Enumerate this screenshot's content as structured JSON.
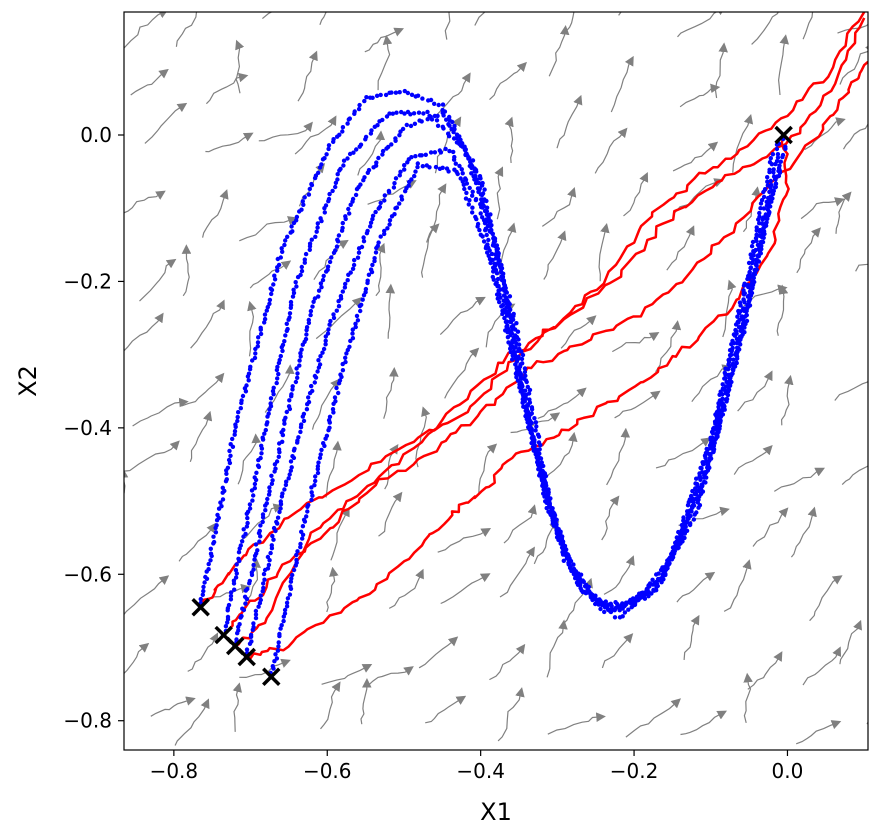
{
  "chart_data": {
    "type": "scatter",
    "title": "",
    "xlabel": "X1",
    "ylabel": "X2",
    "xlim": [
      -0.865,
      0.105
    ],
    "ylim": [
      -0.84,
      0.168
    ],
    "x_ticks": [
      -0.8,
      -0.6,
      -0.4,
      -0.2,
      0.0
    ],
    "x_tick_labels": [
      "−0.8",
      "−0.6",
      "−0.4",
      "−0.2",
      "0.0"
    ],
    "y_ticks": [
      0.0,
      -0.2,
      -0.4,
      -0.6,
      -0.8
    ],
    "y_tick_labels": [
      "0.0",
      "−0.2",
      "−0.4",
      "−0.6",
      "−0.8"
    ],
    "grid": false,
    "legend": "none",
    "colors": {
      "streamlines": "#808080",
      "trajectories": "#ff0000",
      "scatter_points": "#0000ff",
      "markers": "#000000"
    },
    "start_markers": {
      "marker": "x",
      "points": [
        {
          "x": -0.765,
          "y": -0.645
        },
        {
          "x": -0.735,
          "y": -0.683
        },
        {
          "x": -0.72,
          "y": -0.698
        },
        {
          "x": -0.705,
          "y": -0.713
        },
        {
          "x": -0.673,
          "y": -0.74
        },
        {
          "x": -0.005,
          "y": 0.0
        }
      ]
    },
    "red_trajectories": [
      {
        "points": [
          [
            -0.765,
            -0.645
          ],
          [
            -0.74,
            -0.615
          ],
          [
            -0.7,
            -0.565
          ],
          [
            -0.64,
            -0.515
          ],
          [
            -0.58,
            -0.48
          ],
          [
            -0.5,
            -0.42
          ],
          [
            -0.42,
            -0.38
          ],
          [
            -0.36,
            -0.31
          ],
          [
            -0.3,
            -0.26
          ],
          [
            -0.24,
            -0.2
          ],
          [
            -0.18,
            -0.11
          ],
          [
            -0.12,
            -0.06
          ],
          [
            -0.06,
            -0.02
          ],
          [
            0.0,
            0.03
          ],
          [
            0.05,
            0.08
          ],
          [
            0.1,
            0.168
          ]
        ]
      },
      {
        "points": [
          [
            -0.735,
            -0.683
          ],
          [
            -0.7,
            -0.64
          ],
          [
            -0.65,
            -0.58
          ],
          [
            -0.6,
            -0.54
          ],
          [
            -0.54,
            -0.48
          ],
          [
            -0.46,
            -0.43
          ],
          [
            -0.4,
            -0.38
          ],
          [
            -0.34,
            -0.32
          ],
          [
            -0.28,
            -0.29
          ],
          [
            -0.2,
            -0.25
          ],
          [
            -0.14,
            -0.2
          ],
          [
            -0.08,
            -0.14
          ],
          [
            -0.02,
            -0.07
          ],
          [
            0.04,
            0.0
          ],
          [
            0.08,
            0.06
          ],
          [
            0.105,
            0.1
          ]
        ]
      },
      {
        "points": [
          [
            -0.72,
            -0.698
          ],
          [
            -0.68,
            -0.66
          ],
          [
            -0.62,
            -0.54
          ],
          [
            -0.56,
            -0.49
          ],
          [
            -0.48,
            -0.42
          ],
          [
            -0.42,
            -0.36
          ],
          [
            -0.36,
            -0.3
          ],
          [
            -0.3,
            -0.26
          ],
          [
            -0.22,
            -0.19
          ],
          [
            -0.16,
            -0.12
          ],
          [
            -0.1,
            -0.07
          ],
          [
            -0.04,
            -0.04
          ],
          [
            0.02,
            0.01
          ],
          [
            0.06,
            0.07
          ],
          [
            0.1,
            0.16
          ]
        ]
      },
      {
        "points": [
          [
            -0.705,
            -0.713
          ],
          [
            -0.66,
            -0.7
          ],
          [
            -0.6,
            -0.66
          ],
          [
            -0.54,
            -0.62
          ],
          [
            -0.48,
            -0.56
          ],
          [
            -0.44,
            -0.52
          ],
          [
            -0.4,
            -0.49
          ],
          [
            -0.36,
            -0.44
          ],
          [
            -0.3,
            -0.41
          ],
          [
            -0.24,
            -0.37
          ],
          [
            -0.18,
            -0.33
          ],
          [
            -0.12,
            -0.28
          ],
          [
            -0.06,
            -0.22
          ],
          [
            -0.02,
            -0.15
          ],
          [
            0.0,
            -0.07
          ],
          [
            -0.005,
            0.0
          ]
        ]
      }
    ],
    "blue_orbits": [
      {
        "points": [
          [
            -0.765,
            -0.645
          ],
          [
            -0.72,
            -0.4
          ],
          [
            -0.66,
            -0.16
          ],
          [
            -0.6,
            -0.02
          ],
          [
            -0.55,
            0.05
          ],
          [
            -0.5,
            0.06
          ],
          [
            -0.45,
            0.04
          ],
          [
            -0.4,
            -0.06
          ],
          [
            -0.35,
            -0.28
          ],
          [
            -0.31,
            -0.5
          ],
          [
            -0.27,
            -0.62
          ],
          [
            -0.22,
            -0.65
          ],
          [
            -0.16,
            -0.6
          ],
          [
            -0.1,
            -0.42
          ],
          [
            -0.05,
            -0.18
          ],
          [
            -0.02,
            -0.03
          ],
          [
            -0.005,
            0.0
          ]
        ]
      },
      {
        "points": [
          [
            -0.735,
            -0.683
          ],
          [
            -0.69,
            -0.45
          ],
          [
            -0.64,
            -0.2
          ],
          [
            -0.58,
            -0.04
          ],
          [
            -0.52,
            0.03
          ],
          [
            -0.47,
            0.03
          ],
          [
            -0.42,
            -0.02
          ],
          [
            -0.38,
            -0.15
          ],
          [
            -0.34,
            -0.38
          ],
          [
            -0.3,
            -0.55
          ],
          [
            -0.25,
            -0.64
          ],
          [
            -0.2,
            -0.64
          ],
          [
            -0.14,
            -0.56
          ],
          [
            -0.09,
            -0.38
          ],
          [
            -0.04,
            -0.15
          ],
          [
            -0.01,
            -0.02
          ]
        ]
      },
      {
        "points": [
          [
            -0.72,
            -0.698
          ],
          [
            -0.67,
            -0.46
          ],
          [
            -0.62,
            -0.24
          ],
          [
            -0.56,
            -0.07
          ],
          [
            -0.5,
            0.01
          ],
          [
            -0.45,
            0.03
          ],
          [
            -0.41,
            -0.04
          ],
          [
            -0.37,
            -0.2
          ],
          [
            -0.33,
            -0.42
          ],
          [
            -0.29,
            -0.58
          ],
          [
            -0.24,
            -0.65
          ],
          [
            -0.18,
            -0.63
          ],
          [
            -0.12,
            -0.52
          ],
          [
            -0.07,
            -0.32
          ],
          [
            -0.03,
            -0.12
          ],
          [
            0.0,
            -0.01
          ]
        ]
      },
      {
        "points": [
          [
            -0.705,
            -0.713
          ],
          [
            -0.66,
            -0.5
          ],
          [
            -0.6,
            -0.27
          ],
          [
            -0.54,
            -0.11
          ],
          [
            -0.49,
            -0.03
          ],
          [
            -0.44,
            -0.02
          ],
          [
            -0.4,
            -0.1
          ],
          [
            -0.36,
            -0.28
          ],
          [
            -0.32,
            -0.47
          ],
          [
            -0.28,
            -0.6
          ],
          [
            -0.23,
            -0.65
          ],
          [
            -0.17,
            -0.62
          ],
          [
            -0.11,
            -0.48
          ],
          [
            -0.06,
            -0.28
          ],
          [
            -0.02,
            -0.08
          ]
        ]
      },
      {
        "points": [
          [
            -0.673,
            -0.74
          ],
          [
            -0.63,
            -0.53
          ],
          [
            -0.58,
            -0.32
          ],
          [
            -0.53,
            -0.14
          ],
          [
            -0.48,
            -0.04
          ],
          [
            -0.43,
            -0.05
          ],
          [
            -0.39,
            -0.16
          ],
          [
            -0.35,
            -0.34
          ],
          [
            -0.31,
            -0.52
          ],
          [
            -0.27,
            -0.62
          ],
          [
            -0.22,
            -0.66
          ],
          [
            -0.16,
            -0.6
          ],
          [
            -0.1,
            -0.44
          ],
          [
            -0.05,
            -0.22
          ],
          [
            -0.01,
            -0.04
          ]
        ]
      }
    ]
  }
}
